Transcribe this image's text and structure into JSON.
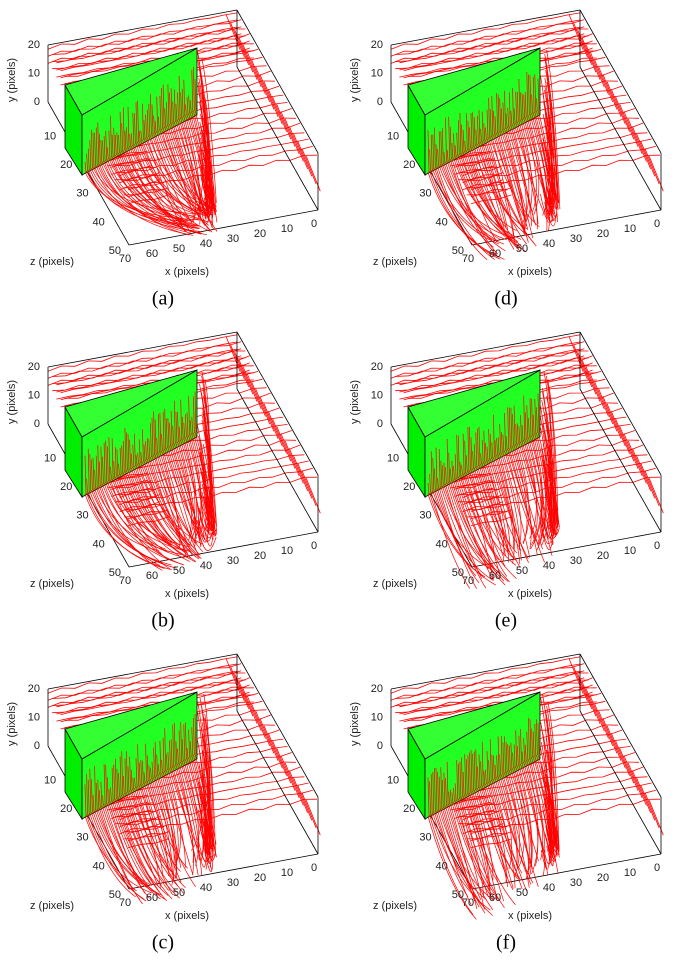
{
  "panels": [
    {
      "label": "(a)",
      "x_axis": "x (pixels)",
      "y_axis": "y (pixels)",
      "z_axis": "z (pixels)",
      "xticks": [
        70,
        60,
        50,
        40,
        30,
        20,
        10,
        0
      ],
      "yticks": [
        0,
        10,
        20
      ],
      "zticks": [
        10,
        20,
        30,
        40,
        50
      ]
    },
    {
      "label": "(b)",
      "x_axis": "x (pixels)",
      "y_axis": "y (pixels)",
      "z_axis": "z (pixels)",
      "xticks": [
        70,
        60,
        50,
        40,
        30,
        20,
        10,
        0
      ],
      "yticks": [
        0,
        10,
        20
      ],
      "zticks": [
        10,
        20,
        30,
        40,
        50
      ]
    },
    {
      "label": "(c)",
      "x_axis": "x (pixels)",
      "y_axis": "y (pixels)",
      "z_axis": "z (pixels)",
      "xticks": [
        70,
        60,
        50,
        40,
        30,
        20,
        10,
        0
      ],
      "yticks": [
        0,
        10,
        20
      ],
      "zticks": [
        10,
        20,
        30,
        40,
        50
      ]
    },
    {
      "label": "(d)",
      "x_axis": "x (pixels)",
      "y_axis": "y (pixels)",
      "z_axis": "z (pixels)",
      "xticks": [
        70,
        60,
        50,
        40,
        30,
        20,
        10,
        0
      ],
      "yticks": [
        0,
        10,
        20
      ],
      "zticks": [
        10,
        20,
        30,
        40,
        50
      ]
    },
    {
      "label": "(e)",
      "x_axis": "x (pixels)",
      "y_axis": "y (pixels)",
      "z_axis": "z (pixels)",
      "xticks": [
        70,
        60,
        50,
        40,
        30,
        20,
        10,
        0
      ],
      "yticks": [
        0,
        10,
        20
      ],
      "zticks": [
        10,
        20,
        30,
        40,
        50
      ]
    },
    {
      "label": "(f)",
      "x_axis": "x (pixels)",
      "y_axis": "y (pixels)",
      "z_axis": "z (pixels)",
      "xticks": [
        70,
        60,
        50,
        40,
        30,
        20,
        10,
        0
      ],
      "yticks": [
        0,
        10,
        20
      ],
      "zticks": [
        10,
        20,
        30,
        40,
        50
      ]
    }
  ]
}
